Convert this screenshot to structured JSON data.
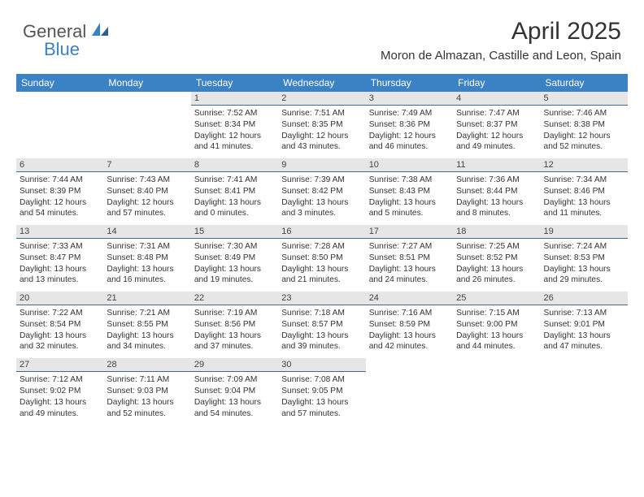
{
  "logo": {
    "part1": "General",
    "part2": "Blue"
  },
  "title": "April 2025",
  "location": "Moron de Almazan, Castille and Leon, Spain",
  "colors": {
    "header_bg": "#3b82c4",
    "header_fg": "#ffffff",
    "daynum_bg": "#e6e6e6",
    "border": "#3b6a94",
    "text": "#333333",
    "logo_gray": "#555555",
    "logo_blue": "#3b82c4"
  },
  "day_names": [
    "Sunday",
    "Monday",
    "Tuesday",
    "Wednesday",
    "Thursday",
    "Friday",
    "Saturday"
  ],
  "weeks": [
    {
      "nums": [
        "",
        "",
        "1",
        "2",
        "3",
        "4",
        "5"
      ],
      "cells": [
        null,
        null,
        {
          "sunrise": "Sunrise: 7:52 AM",
          "sunset": "Sunset: 8:34 PM",
          "day1": "Daylight: 12 hours",
          "day2": "and 41 minutes."
        },
        {
          "sunrise": "Sunrise: 7:51 AM",
          "sunset": "Sunset: 8:35 PM",
          "day1": "Daylight: 12 hours",
          "day2": "and 43 minutes."
        },
        {
          "sunrise": "Sunrise: 7:49 AM",
          "sunset": "Sunset: 8:36 PM",
          "day1": "Daylight: 12 hours",
          "day2": "and 46 minutes."
        },
        {
          "sunrise": "Sunrise: 7:47 AM",
          "sunset": "Sunset: 8:37 PM",
          "day1": "Daylight: 12 hours",
          "day2": "and 49 minutes."
        },
        {
          "sunrise": "Sunrise: 7:46 AM",
          "sunset": "Sunset: 8:38 PM",
          "day1": "Daylight: 12 hours",
          "day2": "and 52 minutes."
        }
      ]
    },
    {
      "nums": [
        "6",
        "7",
        "8",
        "9",
        "10",
        "11",
        "12"
      ],
      "cells": [
        {
          "sunrise": "Sunrise: 7:44 AM",
          "sunset": "Sunset: 8:39 PM",
          "day1": "Daylight: 12 hours",
          "day2": "and 54 minutes."
        },
        {
          "sunrise": "Sunrise: 7:43 AM",
          "sunset": "Sunset: 8:40 PM",
          "day1": "Daylight: 12 hours",
          "day2": "and 57 minutes."
        },
        {
          "sunrise": "Sunrise: 7:41 AM",
          "sunset": "Sunset: 8:41 PM",
          "day1": "Daylight: 13 hours",
          "day2": "and 0 minutes."
        },
        {
          "sunrise": "Sunrise: 7:39 AM",
          "sunset": "Sunset: 8:42 PM",
          "day1": "Daylight: 13 hours",
          "day2": "and 3 minutes."
        },
        {
          "sunrise": "Sunrise: 7:38 AM",
          "sunset": "Sunset: 8:43 PM",
          "day1": "Daylight: 13 hours",
          "day2": "and 5 minutes."
        },
        {
          "sunrise": "Sunrise: 7:36 AM",
          "sunset": "Sunset: 8:44 PM",
          "day1": "Daylight: 13 hours",
          "day2": "and 8 minutes."
        },
        {
          "sunrise": "Sunrise: 7:34 AM",
          "sunset": "Sunset: 8:46 PM",
          "day1": "Daylight: 13 hours",
          "day2": "and 11 minutes."
        }
      ]
    },
    {
      "nums": [
        "13",
        "14",
        "15",
        "16",
        "17",
        "18",
        "19"
      ],
      "cells": [
        {
          "sunrise": "Sunrise: 7:33 AM",
          "sunset": "Sunset: 8:47 PM",
          "day1": "Daylight: 13 hours",
          "day2": "and 13 minutes."
        },
        {
          "sunrise": "Sunrise: 7:31 AM",
          "sunset": "Sunset: 8:48 PM",
          "day1": "Daylight: 13 hours",
          "day2": "and 16 minutes."
        },
        {
          "sunrise": "Sunrise: 7:30 AM",
          "sunset": "Sunset: 8:49 PM",
          "day1": "Daylight: 13 hours",
          "day2": "and 19 minutes."
        },
        {
          "sunrise": "Sunrise: 7:28 AM",
          "sunset": "Sunset: 8:50 PM",
          "day1": "Daylight: 13 hours",
          "day2": "and 21 minutes."
        },
        {
          "sunrise": "Sunrise: 7:27 AM",
          "sunset": "Sunset: 8:51 PM",
          "day1": "Daylight: 13 hours",
          "day2": "and 24 minutes."
        },
        {
          "sunrise": "Sunrise: 7:25 AM",
          "sunset": "Sunset: 8:52 PM",
          "day1": "Daylight: 13 hours",
          "day2": "and 26 minutes."
        },
        {
          "sunrise": "Sunrise: 7:24 AM",
          "sunset": "Sunset: 8:53 PM",
          "day1": "Daylight: 13 hours",
          "day2": "and 29 minutes."
        }
      ]
    },
    {
      "nums": [
        "20",
        "21",
        "22",
        "23",
        "24",
        "25",
        "26"
      ],
      "cells": [
        {
          "sunrise": "Sunrise: 7:22 AM",
          "sunset": "Sunset: 8:54 PM",
          "day1": "Daylight: 13 hours",
          "day2": "and 32 minutes."
        },
        {
          "sunrise": "Sunrise: 7:21 AM",
          "sunset": "Sunset: 8:55 PM",
          "day1": "Daylight: 13 hours",
          "day2": "and 34 minutes."
        },
        {
          "sunrise": "Sunrise: 7:19 AM",
          "sunset": "Sunset: 8:56 PM",
          "day1": "Daylight: 13 hours",
          "day2": "and 37 minutes."
        },
        {
          "sunrise": "Sunrise: 7:18 AM",
          "sunset": "Sunset: 8:57 PM",
          "day1": "Daylight: 13 hours",
          "day2": "and 39 minutes."
        },
        {
          "sunrise": "Sunrise: 7:16 AM",
          "sunset": "Sunset: 8:59 PM",
          "day1": "Daylight: 13 hours",
          "day2": "and 42 minutes."
        },
        {
          "sunrise": "Sunrise: 7:15 AM",
          "sunset": "Sunset: 9:00 PM",
          "day1": "Daylight: 13 hours",
          "day2": "and 44 minutes."
        },
        {
          "sunrise": "Sunrise: 7:13 AM",
          "sunset": "Sunset: 9:01 PM",
          "day1": "Daylight: 13 hours",
          "day2": "and 47 minutes."
        }
      ]
    },
    {
      "nums": [
        "27",
        "28",
        "29",
        "30",
        "",
        "",
        ""
      ],
      "cells": [
        {
          "sunrise": "Sunrise: 7:12 AM",
          "sunset": "Sunset: 9:02 PM",
          "day1": "Daylight: 13 hours",
          "day2": "and 49 minutes."
        },
        {
          "sunrise": "Sunrise: 7:11 AM",
          "sunset": "Sunset: 9:03 PM",
          "day1": "Daylight: 13 hours",
          "day2": "and 52 minutes."
        },
        {
          "sunrise": "Sunrise: 7:09 AM",
          "sunset": "Sunset: 9:04 PM",
          "day1": "Daylight: 13 hours",
          "day2": "and 54 minutes."
        },
        {
          "sunrise": "Sunrise: 7:08 AM",
          "sunset": "Sunset: 9:05 PM",
          "day1": "Daylight: 13 hours",
          "day2": "and 57 minutes."
        },
        null,
        null,
        null
      ]
    }
  ]
}
